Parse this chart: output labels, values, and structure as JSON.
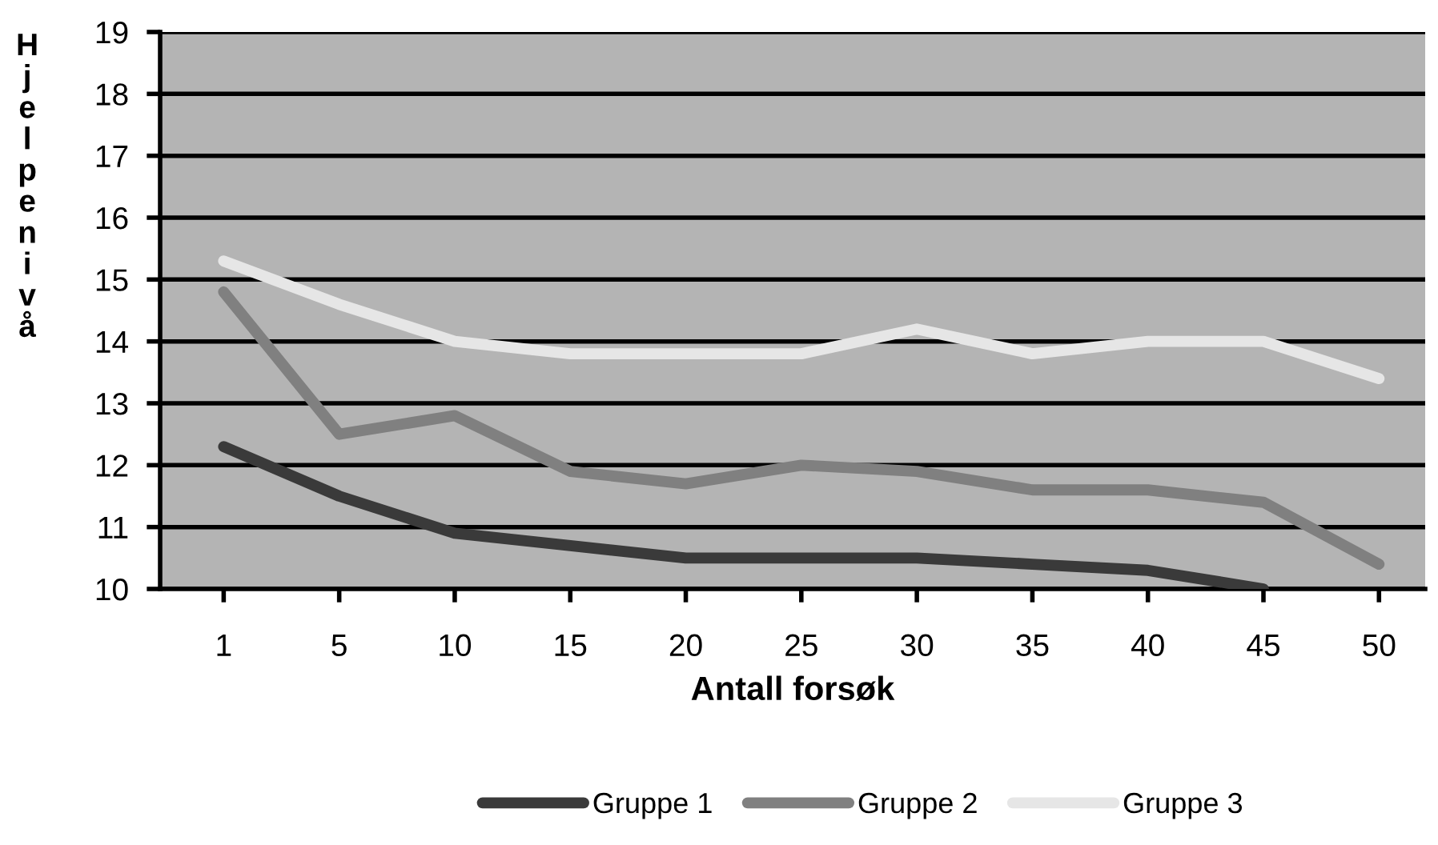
{
  "chart_data": {
    "type": "line",
    "xlabel": "Antall forsøk",
    "ylabel": "Hjelpenivå",
    "categories": [
      "1",
      "5",
      "10",
      "15",
      "20",
      "25",
      "30",
      "35",
      "40",
      "45",
      "50"
    ],
    "series": [
      {
        "name": "Gruppe 1",
        "color": "#3a3a3a",
        "values": [
          12.3,
          11.5,
          10.9,
          10.7,
          10.5,
          10.5,
          10.5,
          10.4,
          10.3,
          10.0,
          null
        ]
      },
      {
        "name": "Gruppe 2",
        "color": "#808080",
        "values": [
          14.8,
          12.5,
          12.8,
          11.9,
          11.7,
          12.0,
          11.9,
          11.6,
          11.6,
          11.4,
          10.4
        ]
      },
      {
        "name": "Gruppe 3",
        "color": "#e6e6e6",
        "values": [
          15.3,
          14.6,
          14.0,
          13.8,
          13.8,
          13.8,
          14.2,
          13.8,
          14.0,
          14.0,
          13.4
        ]
      }
    ],
    "ylim": [
      10,
      19
    ],
    "yticks": [
      10,
      11,
      12,
      13,
      14,
      15,
      16,
      17,
      18,
      19
    ],
    "grid": "y",
    "legend": "bottom",
    "marker": "none",
    "line_style": "solid"
  }
}
